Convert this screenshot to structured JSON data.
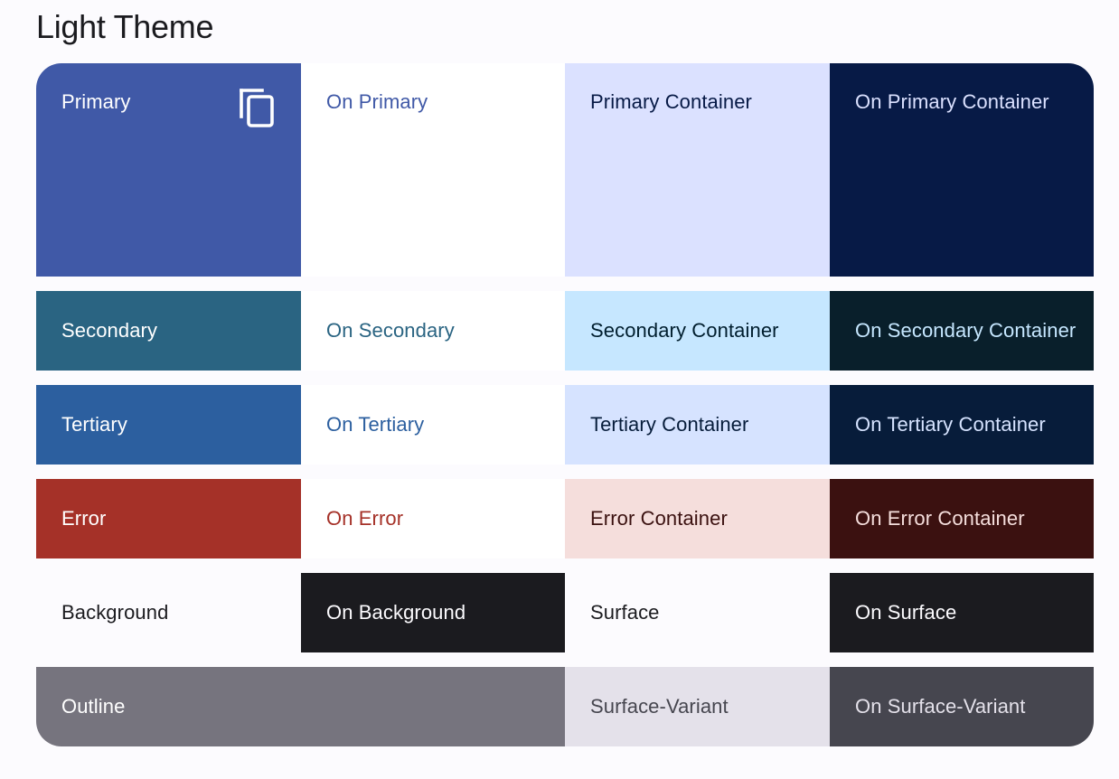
{
  "page": {
    "title": "Light Theme"
  },
  "icons": {
    "copy": "content-copy-icon"
  },
  "rows": [
    {
      "cells": [
        {
          "label": "Primary",
          "bg": "#4059a7",
          "fg": "#ffffff"
        },
        {
          "label": "On Primary",
          "bg": "#ffffff",
          "fg": "#4059a7"
        },
        {
          "label": "Primary Container",
          "bg": "#dbe1ff",
          "fg": "#071a46"
        },
        {
          "label": "On Primary Container",
          "bg": "#071a46",
          "fg": "#dbe1ff"
        }
      ]
    },
    {
      "cells": [
        {
          "label": "Secondary",
          "bg": "#2a6482",
          "fg": "#ffffff"
        },
        {
          "label": "On Secondary",
          "bg": "#ffffff",
          "fg": "#2a6482"
        },
        {
          "label": "Secondary Container",
          "bg": "#c6e7ff",
          "fg": "#001e2e"
        },
        {
          "label": "On Secondary Container",
          "bg": "#091f2b",
          "fg": "#c6e7ff"
        }
      ]
    },
    {
      "cells": [
        {
          "label": "Tertiary",
          "bg": "#2c5f9f",
          "fg": "#ffffff"
        },
        {
          "label": "On Tertiary",
          "bg": "#ffffff",
          "fg": "#2c5f9f"
        },
        {
          "label": "Tertiary Container",
          "bg": "#d6e3ff",
          "fg": "#061c3a"
        },
        {
          "label": "On Tertiary Container",
          "bg": "#071c3a",
          "fg": "#d6e3ff"
        }
      ]
    },
    {
      "cells": [
        {
          "label": "Error",
          "bg": "#a53128",
          "fg": "#ffffff"
        },
        {
          "label": "On Error",
          "bg": "#ffffff",
          "fg": "#a53128"
        },
        {
          "label": "Error Container",
          "bg": "#f5dedc",
          "fg": "#3b1110"
        },
        {
          "label": "On Error Container",
          "bg": "#3b1110",
          "fg": "#f5dedc"
        }
      ]
    },
    {
      "cells": [
        {
          "label": "Background",
          "bg": "#fcfbfe",
          "fg": "#1b1b1f"
        },
        {
          "label": "On Background",
          "bg": "#1b1b1f",
          "fg": "#fcfbfe"
        },
        {
          "label": "Surface",
          "bg": "#fcfbfe",
          "fg": "#1b1b1f"
        },
        {
          "label": "On Surface",
          "bg": "#1b1b1f",
          "fg": "#fcfbfe"
        }
      ]
    },
    {
      "cells": [
        {
          "label": "Outline",
          "bg": "#76747e",
          "fg": "#ffffff"
        },
        {
          "label": "Surface-Variant",
          "bg": "#e4e1ea",
          "fg": "#46464f"
        },
        {
          "label": "On Surface-Variant",
          "bg": "#46464f",
          "fg": "#e4e1ea"
        }
      ]
    }
  ]
}
